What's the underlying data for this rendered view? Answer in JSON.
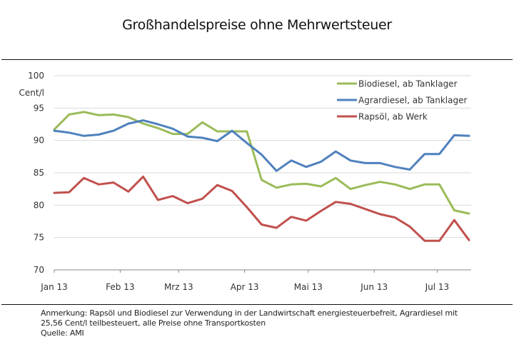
{
  "header": {
    "title": "Großhandelspreise ohne Mehrwertsteuer"
  },
  "footer": {
    "note_line1": "Anmerkung: Rapsöl und Biodiesel zur Verwendung in der Landwirtschaft energiesteuerbefreit, Agrardiesel mit",
    "note_line2": "25,56 Cent/l teilbesteuert, alle Preise ohne Transportkosten",
    "source": "Quelle: AMI"
  },
  "chart_data": {
    "type": "line",
    "title": "Großhandelspreise ohne Mehrwertsteuer",
    "xlabel": "",
    "ylabel": "Cent/l",
    "ylim": [
      70,
      100
    ],
    "yticks": [
      70,
      75,
      80,
      85,
      90,
      95,
      100
    ],
    "grid": true,
    "legend_position": "top-right",
    "x_tick_labels": [
      "Jan 13",
      "Feb 13",
      "Mrz 13",
      "Apr 13",
      "Mai 13",
      "Jun 13",
      "Jul 13"
    ],
    "x_tick_positions": [
      0,
      4.45,
      8.4,
      12.85,
      17.15,
      21.6,
      25.85
    ],
    "num_points": 29,
    "series": [
      {
        "name": "Biodiesel, ab Tanklager",
        "color": "#9bbb59",
        "values": [
          91.7,
          94.0,
          94.4,
          93.9,
          94.0,
          93.6,
          92.6,
          91.9,
          91.0,
          91.0,
          92.8,
          91.4,
          91.4,
          91.4,
          83.9,
          82.7,
          83.2,
          83.3,
          82.9,
          84.2,
          82.5,
          83.1,
          83.6,
          83.2,
          82.5,
          83.2,
          83.2,
          79.2,
          78.7
        ]
      },
      {
        "name": "Agrardiesel, ab Tanklager",
        "color": "#4f81bd",
        "values": [
          91.5,
          91.2,
          90.7,
          90.9,
          91.5,
          92.6,
          93.1,
          92.5,
          91.8,
          90.6,
          90.4,
          89.9,
          91.5,
          89.6,
          87.8,
          85.3,
          86.9,
          85.9,
          86.7,
          88.3,
          86.9,
          86.5,
          86.5,
          85.9,
          85.5,
          87.9,
          87.9,
          90.8,
          90.7
        ]
      },
      {
        "name": "Rapsöl, ab Werk",
        "color": "#c0504d",
        "values": [
          81.9,
          82.0,
          84.2,
          83.2,
          83.5,
          82.1,
          84.4,
          80.8,
          81.4,
          80.3,
          81.0,
          83.1,
          82.2,
          79.7,
          77.0,
          76.5,
          78.2,
          77.6,
          79.1,
          80.5,
          80.2,
          79.4,
          78.6,
          78.1,
          76.7,
          74.5,
          74.5,
          77.7,
          74.6
        ]
      }
    ]
  }
}
